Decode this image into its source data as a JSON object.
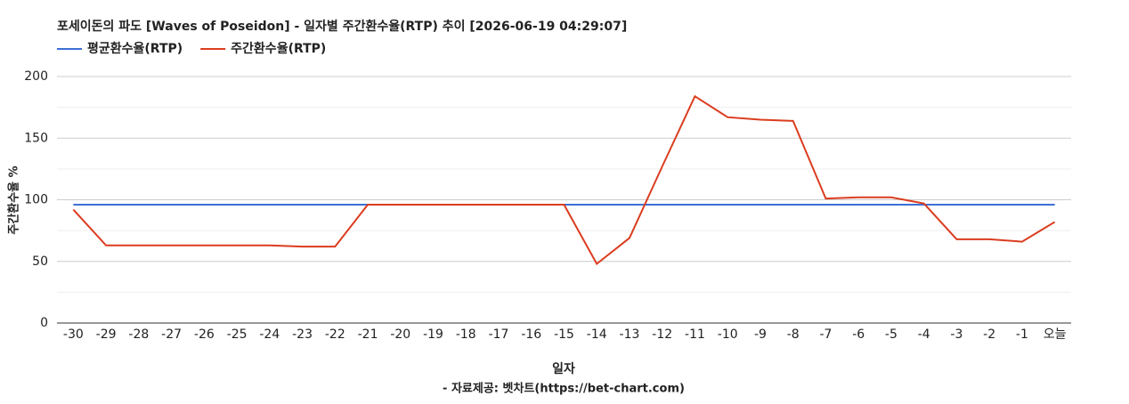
{
  "chart_data": {
    "type": "line",
    "title": "포세이돈의 파도 [Waves of Poseidon] - 일자별 주간환수율(RTP) 추이 [2026-06-19 04:29:07]",
    "x_label": "일자",
    "y_label": "주간환수율 %",
    "caption": "- 자료제공: 벳차트(https://bet-chart.com)",
    "categories": [
      "-30",
      "-29",
      "-28",
      "-27",
      "-26",
      "-25",
      "-24",
      "-23",
      "-22",
      "-21",
      "-20",
      "-19",
      "-18",
      "-17",
      "-16",
      "-15",
      "-14",
      "-13",
      "-12",
      "-11",
      "-10",
      "-9",
      "-8",
      "-7",
      "-6",
      "-5",
      "-4",
      "-3",
      "-2",
      "-1",
      "오늘"
    ],
    "series": [
      {
        "name": "평균환수율(RTP)",
        "color": "#3c6fd6",
        "values": [
          96,
          96,
          96,
          96,
          96,
          96,
          96,
          96,
          96,
          96,
          96,
          96,
          96,
          96,
          96,
          96,
          96,
          96,
          96,
          96,
          96,
          96,
          96,
          96,
          96,
          96,
          96,
          96,
          96,
          96,
          96
        ]
      },
      {
        "name": "주간환수율(RTP)",
        "color": "#db3c1f",
        "values": [
          92,
          63,
          63,
          63,
          63,
          63,
          63,
          62,
          62,
          96,
          96,
          96,
          96,
          96,
          96,
          96,
          48,
          69,
          127,
          184,
          167,
          165,
          164,
          101,
          102,
          102,
          97,
          68,
          68,
          66,
          82
        ]
      }
    ],
    "ylim": [
      0,
      200
    ],
    "yticks": [
      0,
      50,
      100,
      150,
      200
    ],
    "minor_yticks": [
      25,
      75,
      125,
      175
    ],
    "grid": true
  }
}
